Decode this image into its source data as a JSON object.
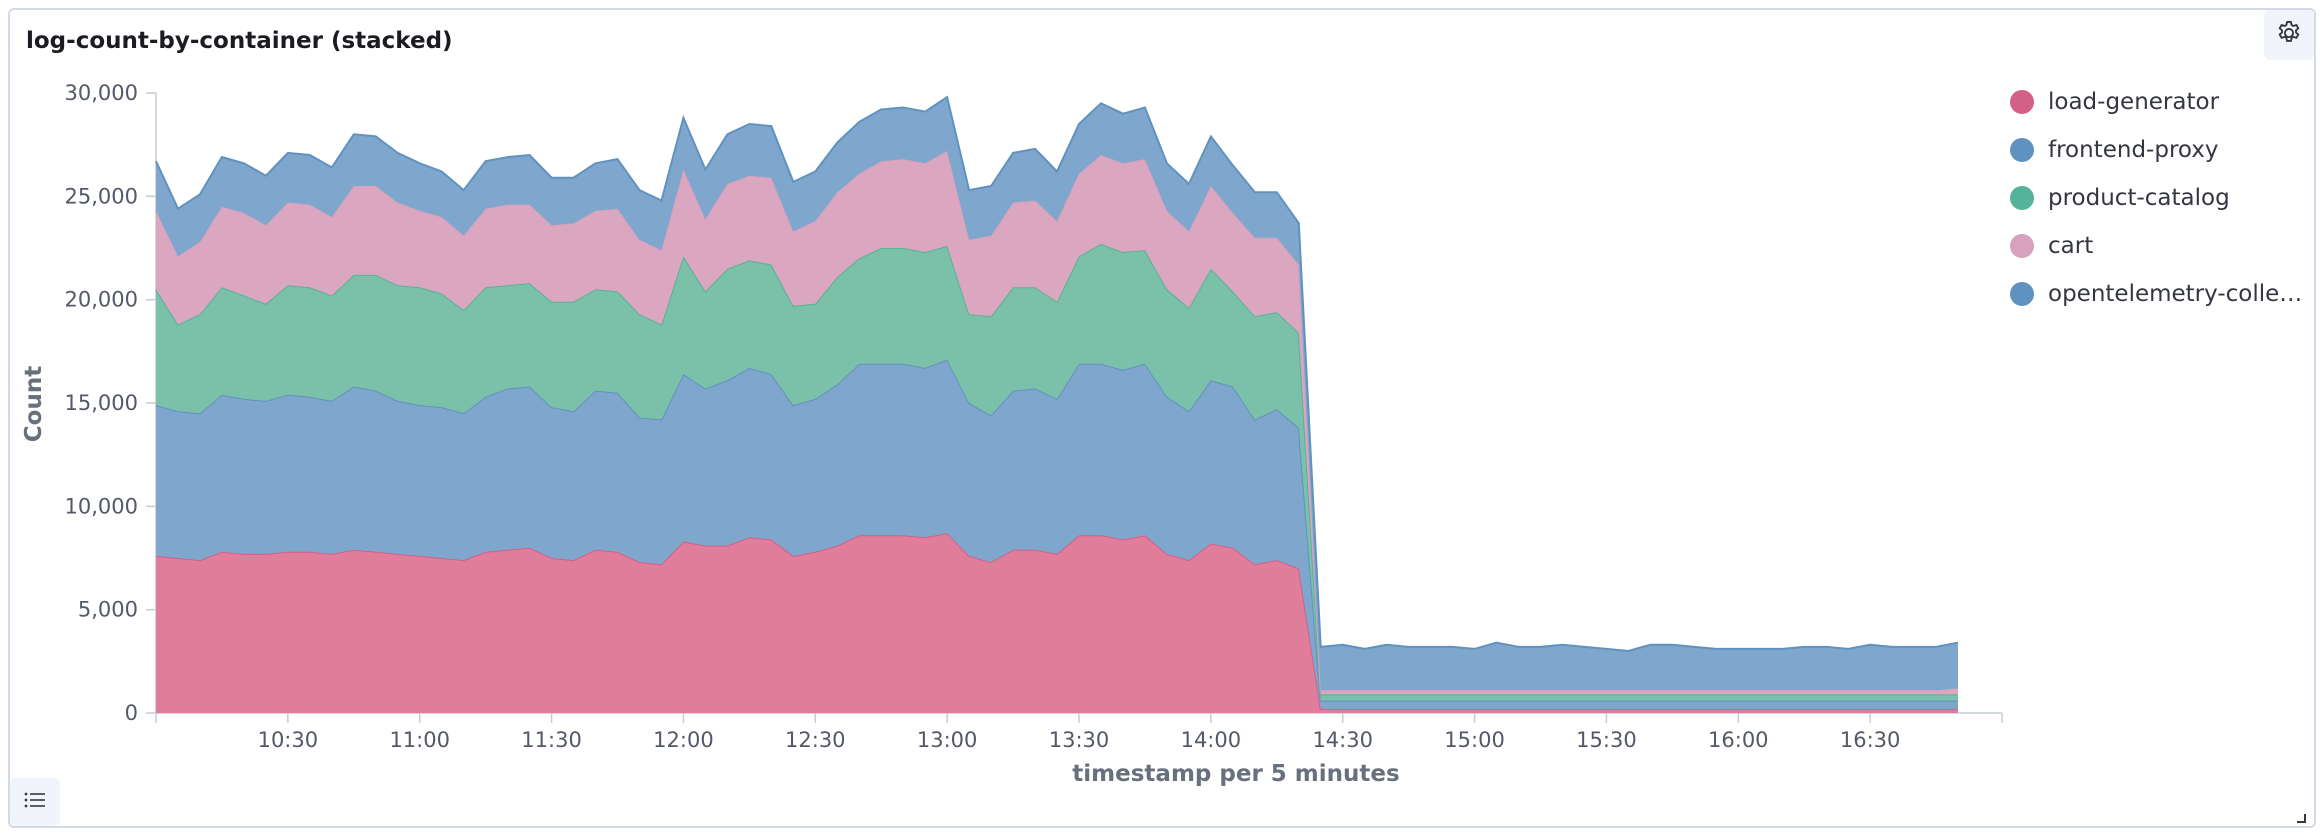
{
  "panel": {
    "title": "log-count-by-container (stacked)"
  },
  "controls": {
    "settings_icon": "gear-icon",
    "legend_toggle_icon": "list-icon"
  },
  "chart_data": {
    "type": "area",
    "stacked": true,
    "title": "log-count-by-container (stacked)",
    "xlabel": "timestamp per 5 minutes",
    "ylabel": "Count",
    "ylim": [
      0,
      30000
    ],
    "yticks": [
      0,
      5000,
      10000,
      15000,
      20000,
      25000,
      30000
    ],
    "ytick_labels": [
      "0",
      "5,000",
      "10,000",
      "15,000",
      "20,000",
      "25,000",
      "30,000"
    ],
    "xlim": [
      "10:00",
      "17:00"
    ],
    "xticks": [
      "10:30",
      "11:00",
      "11:30",
      "12:00",
      "12:30",
      "13:00",
      "13:30",
      "14:00",
      "14:30",
      "15:00",
      "15:30",
      "16:00",
      "16:30"
    ],
    "legend_position": "right",
    "x": [
      "10:00",
      "10:05",
      "10:10",
      "10:15",
      "10:20",
      "10:25",
      "10:30",
      "10:35",
      "10:40",
      "10:45",
      "10:50",
      "10:55",
      "11:00",
      "11:05",
      "11:10",
      "11:15",
      "11:20",
      "11:25",
      "11:30",
      "11:35",
      "11:40",
      "11:45",
      "11:50",
      "11:55",
      "12:00",
      "12:05",
      "12:10",
      "12:15",
      "12:20",
      "12:25",
      "12:30",
      "12:35",
      "12:40",
      "12:45",
      "12:50",
      "12:55",
      "13:00",
      "13:05",
      "13:10",
      "13:15",
      "13:20",
      "13:25",
      "13:30",
      "13:35",
      "13:40",
      "13:45",
      "13:50",
      "13:55",
      "14:00",
      "14:05",
      "14:10",
      "14:15",
      "14:20",
      "14:25",
      "14:30",
      "14:35",
      "14:40",
      "14:45",
      "14:50",
      "14:55",
      "15:00",
      "15:05",
      "15:10",
      "15:15",
      "15:20",
      "15:25",
      "15:30",
      "15:35",
      "15:40",
      "15:45",
      "15:50",
      "15:55",
      "16:00",
      "16:05",
      "16:10",
      "16:15",
      "16:20",
      "16:25",
      "16:30",
      "16:35",
      "16:40",
      "16:45",
      "16:50"
    ],
    "series": [
      {
        "name": "load-generator",
        "color": "#e07d9b",
        "line_color": "#d36086",
        "values": [
          7600,
          7500,
          7400,
          7800,
          7700,
          7700,
          7800,
          7800,
          7700,
          7900,
          7800,
          7700,
          7600,
          7500,
          7400,
          7800,
          7900,
          8000,
          7500,
          7400,
          7900,
          7800,
          7300,
          7200,
          8300,
          8100,
          8100,
          8500,
          8400,
          7600,
          7800,
          8100,
          8600,
          8600,
          8600,
          8500,
          8700,
          7600,
          7300,
          7900,
          7900,
          7700,
          8600,
          8600,
          8400,
          8600,
          7700,
          7400,
          8200,
          8000,
          7200,
          7400,
          7000,
          200,
          200,
          200,
          200,
          200,
          200,
          200,
          200,
          200,
          200,
          200,
          200,
          200,
          200,
          200,
          200,
          200,
          200,
          200,
          200,
          200,
          200,
          200,
          200,
          200,
          200,
          200,
          200,
          200,
          200
        ]
      },
      {
        "name": "frontend-proxy",
        "color": "#7fa7ce",
        "line_color": "#6092c0",
        "values": [
          7300,
          7100,
          7100,
          7600,
          7500,
          7400,
          7600,
          7500,
          7400,
          7900,
          7800,
          7400,
          7300,
          7300,
          7100,
          7500,
          7800,
          7800,
          7300,
          7200,
          7700,
          7700,
          7000,
          7000,
          8100,
          7600,
          8000,
          8200,
          8000,
          7300,
          7400,
          7800,
          8300,
          8300,
          8300,
          8200,
          8400,
          7400,
          7100,
          7700,
          7800,
          7500,
          8300,
          8300,
          8200,
          8300,
          7600,
          7200,
          7900,
          7800,
          7000,
          7300,
          6800,
          400,
          400,
          400,
          400,
          400,
          400,
          400,
          400,
          400,
          400,
          400,
          400,
          400,
          400,
          400,
          400,
          400,
          400,
          400,
          400,
          400,
          400,
          400,
          400,
          400,
          400,
          400,
          400,
          400,
          400
        ]
      },
      {
        "name": "product-catalog",
        "color": "#7bc1aa",
        "line_color": "#54b399",
        "values": [
          5600,
          4200,
          4800,
          5200,
          5000,
          4700,
          5300,
          5300,
          5100,
          5400,
          5600,
          5600,
          5700,
          5500,
          5000,
          5300,
          5000,
          5000,
          5100,
          5300,
          4900,
          4900,
          5000,
          4600,
          5700,
          4700,
          5400,
          5200,
          5300,
          4800,
          4600,
          5200,
          5100,
          5600,
          5600,
          5600,
          5500,
          4300,
          4800,
          5000,
          4900,
          4700,
          5200,
          5800,
          5700,
          5500,
          5200,
          5000,
          5400,
          4600,
          5000,
          4700,
          4600,
          300,
          300,
          300,
          300,
          300,
          300,
          300,
          300,
          300,
          300,
          300,
          300,
          300,
          300,
          300,
          300,
          300,
          300,
          300,
          300,
          300,
          300,
          300,
          300,
          300,
          300,
          300,
          300,
          300,
          300
        ]
      },
      {
        "name": "cart",
        "color": "#dba6bf",
        "line_color": "#d6a2bd",
        "values": [
          3800,
          3300,
          3500,
          3900,
          4000,
          3800,
          4000,
          4000,
          3800,
          4300,
          4300,
          4000,
          3700,
          3700,
          3600,
          3800,
          3900,
          3800,
          3700,
          3800,
          3800,
          4000,
          3600,
          3600,
          4200,
          3500,
          4100,
          4100,
          4200,
          3600,
          4000,
          4100,
          4100,
          4200,
          4300,
          4300,
          4600,
          3600,
          3900,
          4100,
          4200,
          3900,
          4000,
          4300,
          4300,
          4400,
          3800,
          3700,
          4000,
          3800,
          3800,
          3600,
          3300,
          200,
          200,
          200,
          200,
          200,
          200,
          200,
          200,
          200,
          200,
          200,
          200,
          200,
          200,
          200,
          200,
          200,
          200,
          200,
          200,
          200,
          200,
          200,
          200,
          200,
          200,
          200,
          200,
          200,
          300
        ]
      },
      {
        "name": "opentelemetry-collector",
        "color": "#7fa7ce",
        "line_color": "#6092c0",
        "values": [
          2400,
          2300,
          2300,
          2400,
          2400,
          2400,
          2400,
          2400,
          2400,
          2500,
          2400,
          2400,
          2300,
          2200,
          2200,
          2300,
          2300,
          2400,
          2300,
          2200,
          2300,
          2400,
          2400,
          2400,
          2500,
          2400,
          2400,
          2500,
          2500,
          2400,
          2400,
          2400,
          2500,
          2500,
          2500,
          2500,
          2600,
          2400,
          2400,
          2400,
          2500,
          2400,
          2400,
          2500,
          2400,
          2500,
          2300,
          2300,
          2400,
          2300,
          2200,
          2200,
          2000,
          2100,
          2200,
          2000,
          2200,
          2100,
          2100,
          2100,
          2000,
          2300,
          2100,
          2100,
          2200,
          2100,
          2000,
          1900,
          2200,
          2200,
          2100,
          2000,
          2000,
          2000,
          2000,
          2100,
          2100,
          2000,
          2200,
          2100,
          2100,
          2100,
          2200
        ]
      }
    ]
  }
}
